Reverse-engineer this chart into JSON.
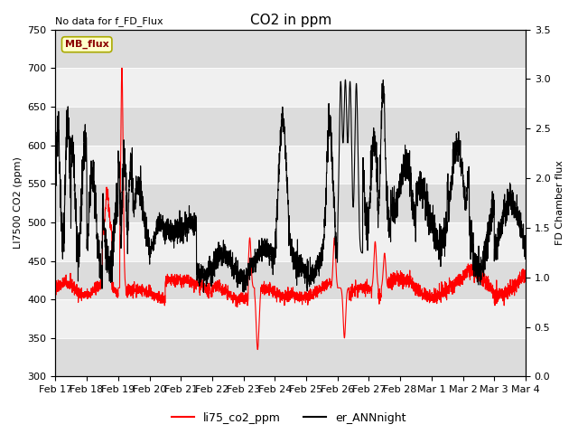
{
  "title": "CO2 in ppm",
  "top_left_text": "No data for f_FD_Flux",
  "ylabel_left": "LI7500 CO2 (ppm)",
  "ylabel_right": "FD Chamber flux",
  "ylim_left": [
    300,
    750
  ],
  "ylim_right": [
    0.0,
    3.5
  ],
  "yticks_left": [
    300,
    350,
    400,
    450,
    500,
    550,
    600,
    650,
    700,
    750
  ],
  "yticks_right": [
    0.0,
    0.5,
    1.0,
    1.5,
    2.0,
    2.5,
    3.0,
    3.5
  ],
  "xtick_labels": [
    "Feb 17",
    "Feb 18",
    "Feb 19",
    "Feb 20",
    "Feb 21",
    "Feb 22",
    "Feb 23",
    "Feb 24",
    "Feb 25",
    "Feb 26",
    "Feb 27",
    "Feb 28",
    "Mar 1",
    "Mar 2",
    "Mar 3",
    "Mar 4"
  ],
  "legend_entries": [
    "li75_co2_ppm",
    "er_ANNnight"
  ],
  "legend_colors": [
    "red",
    "black"
  ],
  "mb_flux_label": "MB_flux",
  "bg_color_light": "#f0f0f0",
  "bg_color_dark": "#dcdcdc",
  "line1_color": "red",
  "line2_color": "black",
  "figsize": [
    6.4,
    4.8
  ],
  "dpi": 100
}
